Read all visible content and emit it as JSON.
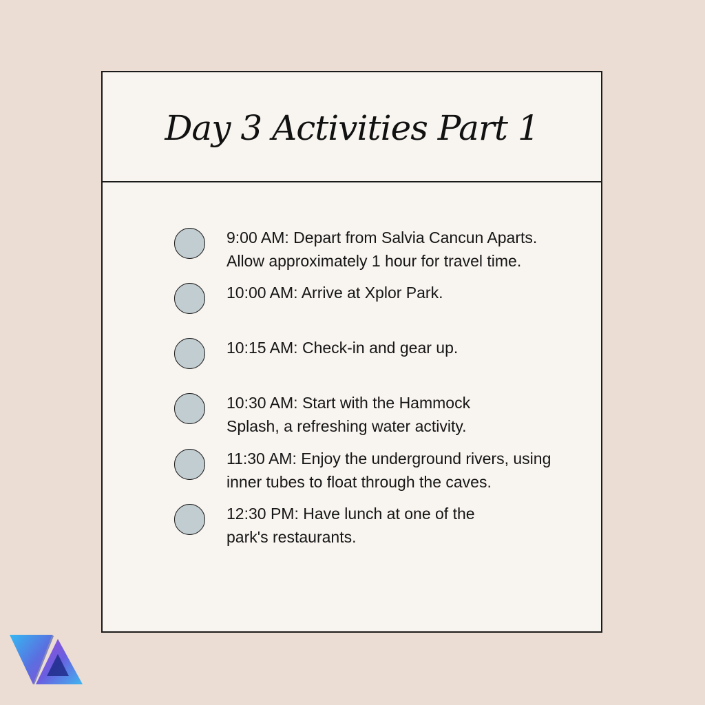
{
  "card": {
    "title": "Day 3 Activities Part 1"
  },
  "items": [
    {
      "text": "9:00 AM: Depart from Salvia Cancun Aparts.\nAllow approximately 1 hour for travel time."
    },
    {
      "text": "10:00 AM: Arrive at Xplor Park."
    },
    {
      "text": "10:15 AM: Check-in and gear up."
    },
    {
      "text": "10:30 AM: Start with the Hammock\nSplash, a refreshing water activity."
    },
    {
      "text": "11:30 AM: Enjoy the underground rivers, using\ninner tubes to float through the caves."
    },
    {
      "text": "12:30 PM: Have lunch at one of the\npark's restaurants."
    }
  ],
  "colors": {
    "background": "#ebddd4",
    "card": "#f8f4ef",
    "bullet": "#c2cdd1",
    "border": "#1a1a1a"
  },
  "logo": {
    "icon": "va-logo-icon"
  }
}
